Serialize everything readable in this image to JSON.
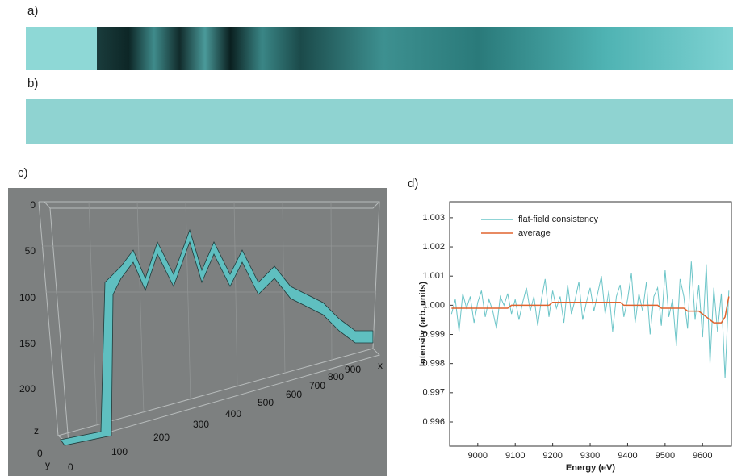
{
  "panels": {
    "a": {
      "label": "a)"
    },
    "b": {
      "label": "b)"
    },
    "c": {
      "label": "c)",
      "z_ticks": [
        0,
        50,
        100,
        150,
        200
      ],
      "x_ticks": [
        100,
        200,
        300,
        400,
        500,
        600,
        700,
        800,
        900
      ],
      "x_axis_label": "x",
      "y_axis_label": "y",
      "z_axis_label": "z",
      "z_origin": "0",
      "y_origin": "0"
    },
    "d": {
      "label": "d)"
    }
  },
  "chart_data": {
    "type": "line",
    "x_label": "Energy (eV)",
    "y_label": "Intensity (arb. units)",
    "xlim": [
      8925,
      9677
    ],
    "xticks": [
      9000,
      9100,
      9200,
      9300,
      9400,
      9500,
      9600
    ],
    "ylim": [
      0.99517,
      1.00355
    ],
    "yticks": [
      0.996,
      0.997,
      0.998,
      0.999,
      {
        "value": 1,
        "label": "1.000"
      },
      1.001,
      1.002,
      1.003
    ],
    "legend": "upper left",
    "x": [
      8930,
      8940,
      8950,
      8960,
      8970,
      8980,
      8990,
      9000,
      9010,
      9020,
      9030,
      9040,
      9050,
      9060,
      9070,
      9080,
      9090,
      9100,
      9110,
      9120,
      9130,
      9140,
      9150,
      9160,
      9170,
      9180,
      9190,
      9200,
      9210,
      9220,
      9230,
      9240,
      9250,
      9260,
      9270,
      9280,
      9290,
      9300,
      9310,
      9320,
      9330,
      9340,
      9350,
      9360,
      9370,
      9380,
      9390,
      9400,
      9410,
      9420,
      9430,
      9440,
      9450,
      9460,
      9470,
      9480,
      9490,
      9500,
      9510,
      9520,
      9530,
      9540,
      9550,
      9560,
      9570,
      9580,
      9590,
      9600,
      9610,
      9620,
      9630,
      9640,
      9650,
      9660,
      9670
    ],
    "series": [
      {
        "name": "flat-field consistency",
        "color": "#6cc5c8",
        "values": [
          0.9997,
          1.0002,
          0.9991,
          1.0004,
          0.9999,
          1.0003,
          0.9994,
          1.0001,
          1.0005,
          0.9996,
          1.0002,
          0.9998,
          0.9992,
          1.0003,
          1,
          1.0004,
          0.9997,
          1.0002,
          0.9995,
          1.0001,
          1.0006,
          0.9998,
          1.0003,
          0.9993,
          1.0002,
          1.0009,
          0.9996,
          1.0005,
          0.9999,
          1.0003,
          0.9994,
          1.0007,
          0.9997,
          1.0002,
          1.0008,
          0.9995,
          1.0001,
          1.0006,
          0.9998,
          1.0004,
          1.001,
          0.9997,
          1.0005,
          0.9991,
          1.0003,
          1.0007,
          0.9996,
          1.0002,
          1.0011,
          0.9994,
          1.0004,
          0.9998,
          1.0008,
          0.999,
          1.0003,
          1.0006,
          0.9993,
          1.0012,
          0.9996,
          1.0002,
          0.9986,
          1.0009,
          1.0003,
          0.9992,
          1.0015,
          0.9995,
          1.0007,
          0.9989,
          1.0014,
          0.998,
          1.0006,
          0.9991,
          1.0004,
          0.9975,
          1.0005
        ]
      },
      {
        "name": "average",
        "color": "#e0642e",
        "values": [
          0.9999,
          0.9999,
          0.9999,
          0.9999,
          0.9999,
          0.9999,
          0.9999,
          0.9999,
          0.9999,
          0.9999,
          0.9999,
          0.9999,
          0.9999,
          0.9999,
          0.9999,
          0.9999,
          1,
          1,
          1,
          1,
          1,
          1,
          1,
          1,
          1,
          1,
          1,
          1.0001,
          1.0001,
          1.0001,
          1.0001,
          1.0001,
          1.0001,
          1.0001,
          1.0001,
          1.0001,
          1.0001,
          1.0001,
          1.0001,
          1.0001,
          1.0001,
          1.0001,
          1.0001,
          1.0001,
          1.0001,
          1.0001,
          1,
          1,
          1,
          1,
          1,
          1,
          1,
          1,
          1,
          1,
          0.9999,
          0.9999,
          0.9999,
          0.9999,
          0.9999,
          0.9999,
          0.9999,
          0.9998,
          0.9998,
          0.9998,
          0.9998,
          0.9997,
          0.9996,
          0.9995,
          0.9994,
          0.9994,
          0.9994,
          0.9996,
          1.0003
        ]
      }
    ]
  }
}
